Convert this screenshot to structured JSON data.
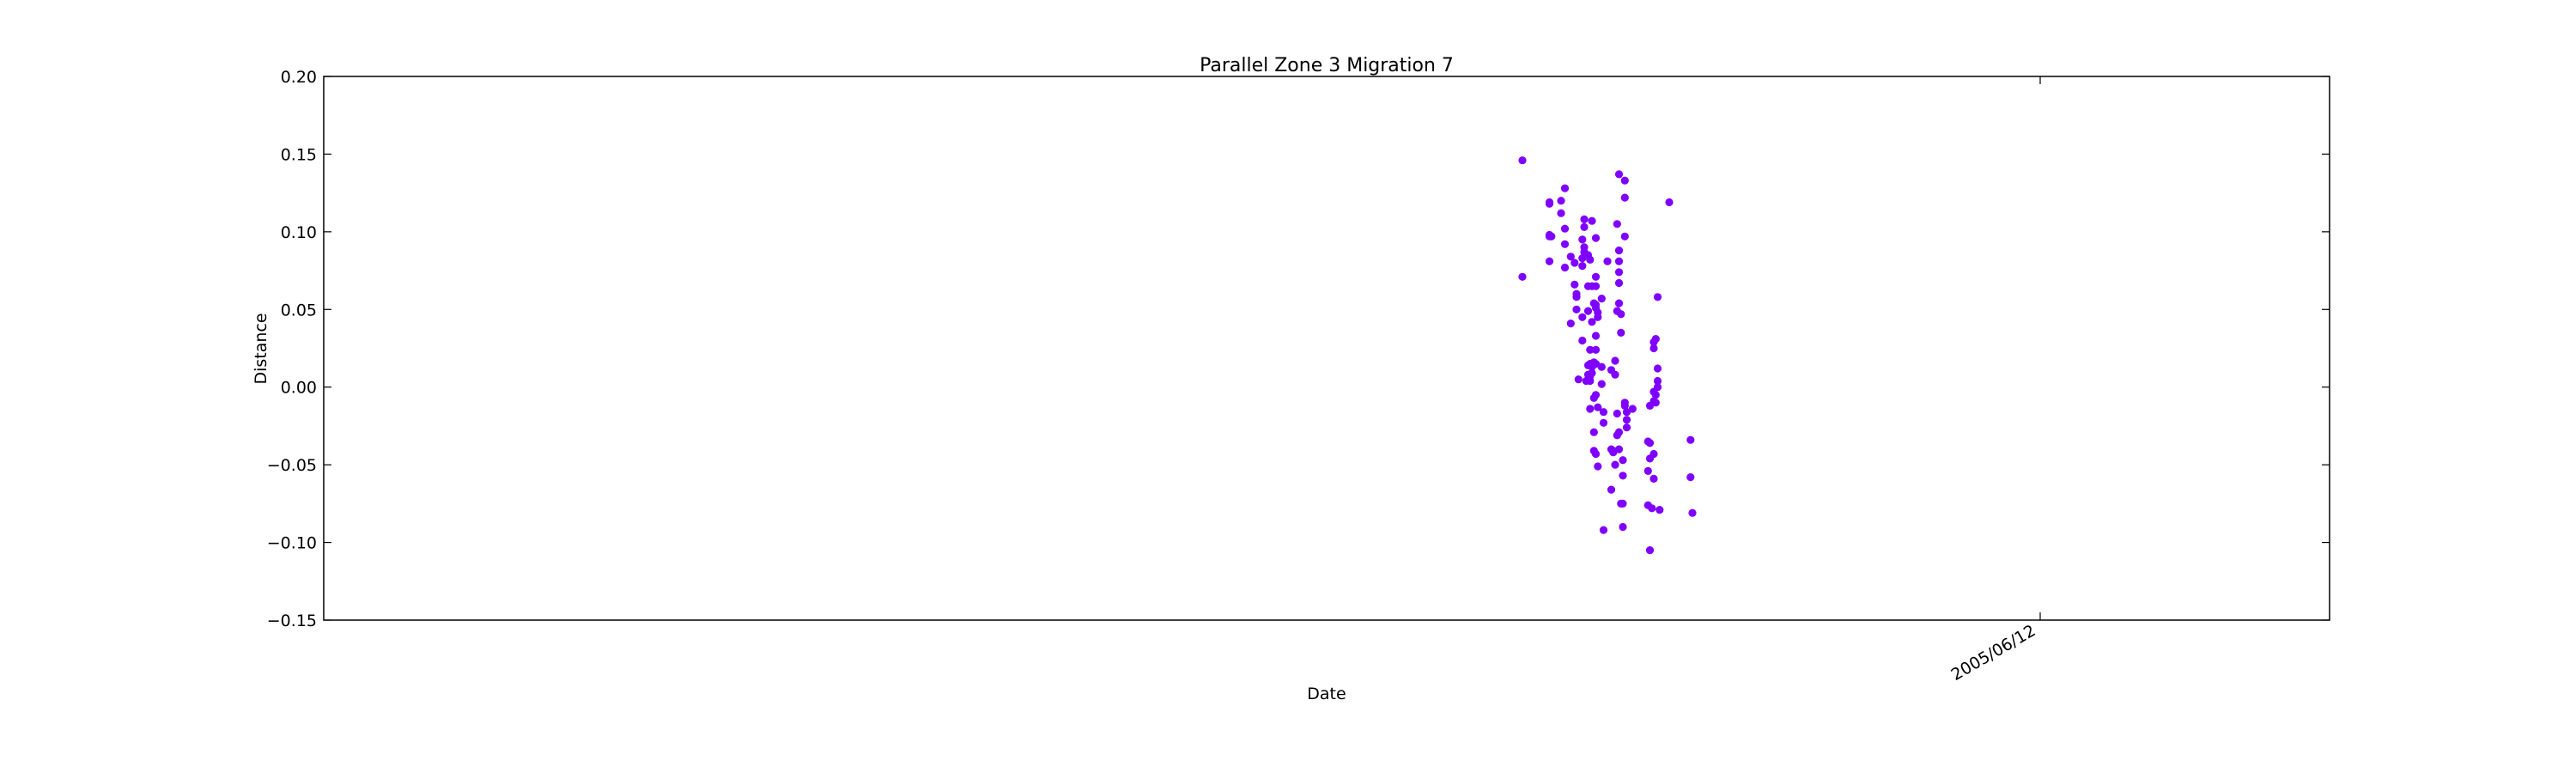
{
  "chart_data": {
    "type": "scatter",
    "title": "Parallel Zone 3 Migration 7",
    "xlabel": "Date",
    "ylabel": "Distance",
    "x_tick_label": "2005/06/12",
    "y_ticks": [
      "0.20",
      "0.15",
      "0.10",
      "0.05",
      "0.00",
      "−0.05",
      "−0.10",
      "−0.15"
    ],
    "ylim": [
      -0.15,
      0.2
    ],
    "grid": false,
    "legend": "none",
    "point_color": "#7f00ff",
    "points": [
      {
        "x": "2004-09-17",
        "y": 0.146
      },
      {
        "x": "2004-09-17",
        "y": 0.071
      },
      {
        "x": "2004-10-01",
        "y": 0.118
      },
      {
        "x": "2004-10-01",
        "y": 0.119
      },
      {
        "x": "2004-10-01",
        "y": 0.098
      },
      {
        "x": "2004-10-01",
        "y": 0.097
      },
      {
        "x": "2004-10-02",
        "y": 0.097
      },
      {
        "x": "2004-10-01",
        "y": 0.081
      },
      {
        "x": "2004-10-07",
        "y": 0.12
      },
      {
        "x": "2004-10-07",
        "y": 0.112
      },
      {
        "x": "2004-10-09",
        "y": 0.128
      },
      {
        "x": "2004-10-09",
        "y": 0.102
      },
      {
        "x": "2004-10-09",
        "y": 0.092
      },
      {
        "x": "2004-10-09",
        "y": 0.077
      },
      {
        "x": "2004-10-12",
        "y": 0.084
      },
      {
        "x": "2004-10-12",
        "y": 0.041
      },
      {
        "x": "2004-10-14",
        "y": 0.08
      },
      {
        "x": "2004-10-14",
        "y": 0.066
      },
      {
        "x": "2004-10-15",
        "y": 0.06
      },
      {
        "x": "2004-10-15",
        "y": 0.058
      },
      {
        "x": "2004-10-15",
        "y": 0.05
      },
      {
        "x": "2004-10-16",
        "y": 0.005
      },
      {
        "x": "2004-10-18",
        "y": 0.095
      },
      {
        "x": "2004-10-18",
        "y": 0.078
      },
      {
        "x": "2004-10-18",
        "y": 0.083
      },
      {
        "x": "2004-10-19",
        "y": 0.108
      },
      {
        "x": "2004-10-19",
        "y": 0.103
      },
      {
        "x": "2004-10-19",
        "y": 0.09
      },
      {
        "x": "2004-10-19",
        "y": 0.087
      },
      {
        "x": "2004-10-18",
        "y": 0.045
      },
      {
        "x": "2004-10-18",
        "y": 0.03
      },
      {
        "x": "2004-10-20",
        "y": 0.004
      },
      {
        "x": "2004-10-21",
        "y": 0.085
      },
      {
        "x": "2004-10-21",
        "y": 0.065
      },
      {
        "x": "2004-10-21",
        "y": 0.049
      },
      {
        "x": "2004-10-21",
        "y": 0.014
      },
      {
        "x": "2004-10-21",
        "y": 0.008
      },
      {
        "x": "2004-10-22",
        "y": 0.082
      },
      {
        "x": "2004-10-22",
        "y": 0.024
      },
      {
        "x": "2004-10-22",
        "y": 0.015
      },
      {
        "x": "2004-10-22",
        "y": 0.007
      },
      {
        "x": "2004-10-22",
        "y": 0.004
      },
      {
        "x": "2004-10-22",
        "y": -0.014
      },
      {
        "x": "2004-10-23",
        "y": 0.107
      },
      {
        "x": "2004-10-23",
        "y": 0.065
      },
      {
        "x": "2004-10-23",
        "y": 0.042
      },
      {
        "x": "2004-10-23",
        "y": 0.013
      },
      {
        "x": "2004-10-23",
        "y": 0.009
      },
      {
        "x": "2004-10-24",
        "y": 0.054
      },
      {
        "x": "2004-10-24",
        "y": 0.016
      },
      {
        "x": "2004-10-24",
        "y": -0.007
      },
      {
        "x": "2004-10-24",
        "y": -0.029
      },
      {
        "x": "2004-10-24",
        "y": -0.041
      },
      {
        "x": "2004-10-25",
        "y": 0.096
      },
      {
        "x": "2004-10-25",
        "y": 0.071
      },
      {
        "x": "2004-10-25",
        "y": 0.065
      },
      {
        "x": "2004-10-25",
        "y": 0.053
      },
      {
        "x": "2004-10-25",
        "y": 0.051
      },
      {
        "x": "2004-10-25",
        "y": 0.033
      },
      {
        "x": "2004-10-25",
        "y": 0.024
      },
      {
        "x": "2004-10-25",
        "y": 0.015
      },
      {
        "x": "2004-10-25",
        "y": -0.005
      },
      {
        "x": "2004-10-25",
        "y": -0.043
      },
      {
        "x": "2004-10-26",
        "y": 0.048
      },
      {
        "x": "2004-10-26",
        "y": 0.045
      },
      {
        "x": "2004-10-26",
        "y": -0.013
      },
      {
        "x": "2004-10-26",
        "y": -0.051
      },
      {
        "x": "2004-10-28",
        "y": 0.057
      },
      {
        "x": "2004-10-28",
        "y": 0.013
      },
      {
        "x": "2004-10-28",
        "y": 0.002
      },
      {
        "x": "2004-10-29",
        "y": -0.016
      },
      {
        "x": "2004-10-29",
        "y": -0.023
      },
      {
        "x": "2004-10-29",
        "y": -0.092
      },
      {
        "x": "2004-10-31",
        "y": 0.081
      },
      {
        "x": "2004-11-02",
        "y": 0.011
      },
      {
        "x": "2004-11-02",
        "y": -0.04
      },
      {
        "x": "2004-11-02",
        "y": -0.066
      },
      {
        "x": "2004-11-03",
        "y": -0.042
      },
      {
        "x": "2004-11-03",
        "y": -0.041
      },
      {
        "x": "2004-11-04",
        "y": 0.017
      },
      {
        "x": "2004-11-04",
        "y": 0.008
      },
      {
        "x": "2004-11-04",
        "y": -0.05
      },
      {
        "x": "2004-11-05",
        "y": 0.105
      },
      {
        "x": "2004-11-05",
        "y": 0.049
      },
      {
        "x": "2004-11-05",
        "y": -0.017
      },
      {
        "x": "2004-11-05",
        "y": -0.031
      },
      {
        "x": "2004-11-06",
        "y": 0.137
      },
      {
        "x": "2004-11-06",
        "y": 0.088
      },
      {
        "x": "2004-11-06",
        "y": 0.081
      },
      {
        "x": "2004-11-06",
        "y": 0.074
      },
      {
        "x": "2004-11-06",
        "y": 0.067
      },
      {
        "x": "2004-11-06",
        "y": 0.054
      },
      {
        "x": "2004-11-06",
        "y": -0.029
      },
      {
        "x": "2004-11-06",
        "y": -0.04
      },
      {
        "x": "2004-11-07",
        "y": 0.047
      },
      {
        "x": "2004-11-07",
        "y": 0.035
      },
      {
        "x": "2004-11-07",
        "y": -0.075
      },
      {
        "x": "2004-11-08",
        "y": -0.075
      },
      {
        "x": "2004-11-08",
        "y": -0.09
      },
      {
        "x": "2004-11-08",
        "y": -0.047
      },
      {
        "x": "2004-11-08",
        "y": -0.057
      },
      {
        "x": "2004-11-09",
        "y": 0.133
      },
      {
        "x": "2004-11-09",
        "y": 0.122
      },
      {
        "x": "2004-11-09",
        "y": 0.097
      },
      {
        "x": "2004-11-09",
        "y": -0.01
      },
      {
        "x": "2004-11-09",
        "y": -0.012
      },
      {
        "x": "2004-11-10",
        "y": -0.016
      },
      {
        "x": "2004-11-10",
        "y": -0.021
      },
      {
        "x": "2004-11-10",
        "y": -0.026
      },
      {
        "x": "2004-11-13",
        "y": -0.014
      },
      {
        "x": "2004-11-21",
        "y": -0.035
      },
      {
        "x": "2004-11-21",
        "y": -0.054
      },
      {
        "x": "2004-11-21",
        "y": -0.076
      },
      {
        "x": "2004-11-22",
        "y": -0.012
      },
      {
        "x": "2004-11-22",
        "y": -0.036
      },
      {
        "x": "2004-11-22",
        "y": -0.046
      },
      {
        "x": "2004-11-22",
        "y": -0.105
      },
      {
        "x": "2004-11-23",
        "y": -0.078
      },
      {
        "x": "2004-11-24",
        "y": 0.029
      },
      {
        "x": "2004-11-24",
        "y": 0.025
      },
      {
        "x": "2004-11-24",
        "y": -0.003
      },
      {
        "x": "2004-11-24",
        "y": -0.009
      },
      {
        "x": "2004-11-24",
        "y": -0.043
      },
      {
        "x": "2004-11-24",
        "y": -0.059
      },
      {
        "x": "2004-11-25",
        "y": 0.031
      },
      {
        "x": "2004-11-25",
        "y": -0.005
      },
      {
        "x": "2004-11-25",
        "y": -0.01
      },
      {
        "x": "2004-11-26",
        "y": 0.058
      },
      {
        "x": "2004-11-26",
        "y": 0.012
      },
      {
        "x": "2004-11-26",
        "y": 0.004
      },
      {
        "x": "2004-11-26",
        "y": 0.0
      },
      {
        "x": "2004-11-27",
        "y": -0.079
      },
      {
        "x": "2004-12-02",
        "y": 0.119
      },
      {
        "x": "2004-12-13",
        "y": -0.034
      },
      {
        "x": "2004-12-13",
        "y": -0.058
      },
      {
        "x": "2004-12-14",
        "y": -0.081
      }
    ]
  }
}
